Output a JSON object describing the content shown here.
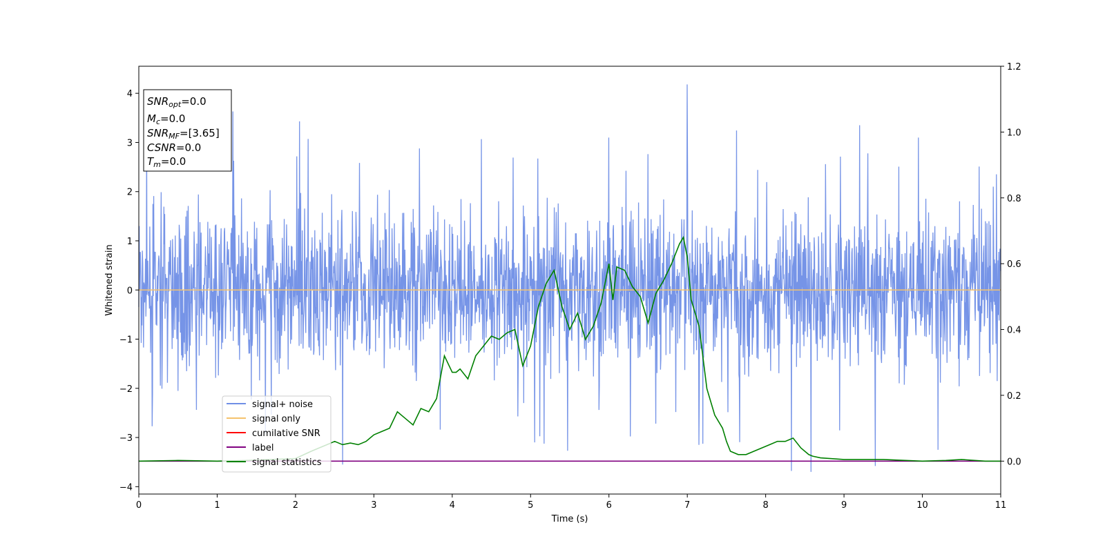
{
  "chart_data": {
    "type": "line",
    "title": "",
    "xlabel": "Time (s)",
    "ylabel": "Whitened strain",
    "ylabel_right": "",
    "xlim": [
      0,
      11
    ],
    "ylim": [
      -4.15,
      4.55
    ],
    "ylim_right": [
      -0.1,
      1.2
    ],
    "xticks": [
      "0",
      "1",
      "2",
      "3",
      "4",
      "5",
      "6",
      "7",
      "8",
      "9",
      "10",
      "11"
    ],
    "yticks": [
      "−4",
      "−3",
      "−2",
      "−1",
      "0",
      "1",
      "2",
      "3",
      "4"
    ],
    "yticks_right": [
      "0.0",
      "0.2",
      "0.4",
      "0.6",
      "0.8",
      "1.0",
      "1.2"
    ],
    "grid": false,
    "legend_position": "lower-left",
    "info_box": {
      "snr_opt": {
        "main": "SNR",
        "sub": "opt",
        "value": "=0.0"
      },
      "mc": {
        "main": "M",
        "sub": "c",
        "value": "=0.0"
      },
      "snr_mf": {
        "main": "SNR",
        "sub": "MF",
        "value": "=[3.65]"
      },
      "csnr": {
        "main": "CSNR",
        "sub": "",
        "value": "=0.0"
      },
      "tm": {
        "main": "T",
        "sub": "m",
        "value": "=0.0"
      }
    },
    "series": [
      {
        "name": "signal+ noise",
        "color": "#6f8ee6",
        "axis": "left",
        "kind": "noise",
        "sample_count": 2200,
        "typical_range": [
          -2.0,
          2.0
        ],
        "extremes": [
          {
            "x": 7.0,
            "y": 4.18
          },
          {
            "x": 8.58,
            "y": -3.7
          },
          {
            "x": 8.33,
            "y": -3.68
          },
          {
            "x": 2.6,
            "y": -3.55
          },
          {
            "x": 9.4,
            "y": -3.58
          },
          {
            "x": 1.2,
            "y": 3.63
          },
          {
            "x": 9.2,
            "y": 3.35
          },
          {
            "x": 6.0,
            "y": 3.1
          },
          {
            "x": 2.05,
            "y": 3.43
          },
          {
            "x": 10.2,
            "y": -3.25
          },
          {
            "x": 7.15,
            "y": -3.15
          },
          {
            "x": 5.05,
            "y": -3.1
          }
        ]
      },
      {
        "name": "signal only",
        "color": "#f5c26b",
        "axis": "left",
        "x": [
          0,
          11
        ],
        "y": [
          0,
          0
        ]
      },
      {
        "name": "cumilative SNR",
        "color": "#ff0000",
        "axis": "right",
        "x": [],
        "y": []
      },
      {
        "name": "label",
        "color": "#800080",
        "axis": "right",
        "x": [
          0,
          11
        ],
        "y": [
          0,
          0
        ]
      },
      {
        "name": "signal statistics",
        "color": "#008000",
        "axis": "right",
        "x": [
          0,
          0.5,
          1.0,
          1.5,
          2.0,
          2.2,
          2.4,
          2.5,
          2.6,
          2.7,
          2.8,
          2.9,
          3.0,
          3.1,
          3.2,
          3.3,
          3.4,
          3.5,
          3.6,
          3.7,
          3.8,
          3.9,
          4.0,
          4.05,
          4.1,
          4.2,
          4.3,
          4.4,
          4.5,
          4.6,
          4.7,
          4.8,
          4.9,
          5.0,
          5.1,
          5.2,
          5.3,
          5.4,
          5.5,
          5.6,
          5.7,
          5.8,
          5.9,
          6.0,
          6.05,
          6.1,
          6.2,
          6.3,
          6.4,
          6.5,
          6.6,
          6.7,
          6.8,
          6.9,
          6.95,
          7.0,
          7.05,
          7.15,
          7.25,
          7.35,
          7.45,
          7.5,
          7.55,
          7.65,
          7.75,
          7.85,
          7.95,
          8.05,
          8.15,
          8.25,
          8.35,
          8.45,
          8.55,
          8.6,
          8.7,
          9.0,
          9.5,
          10.0,
          10.3,
          10.5,
          10.8,
          11.0
        ],
        "y": [
          0.0,
          0.002,
          0.0,
          0.003,
          0.008,
          0.03,
          0.05,
          0.06,
          0.05,
          0.055,
          0.05,
          0.06,
          0.08,
          0.09,
          0.1,
          0.15,
          0.13,
          0.11,
          0.16,
          0.15,
          0.19,
          0.32,
          0.27,
          0.27,
          0.28,
          0.25,
          0.32,
          0.35,
          0.38,
          0.37,
          0.39,
          0.4,
          0.29,
          0.35,
          0.47,
          0.54,
          0.58,
          0.47,
          0.4,
          0.45,
          0.37,
          0.41,
          0.48,
          0.6,
          0.49,
          0.59,
          0.58,
          0.53,
          0.5,
          0.42,
          0.51,
          0.55,
          0.6,
          0.66,
          0.68,
          0.62,
          0.49,
          0.41,
          0.22,
          0.14,
          0.1,
          0.06,
          0.03,
          0.02,
          0.02,
          0.03,
          0.04,
          0.05,
          0.06,
          0.06,
          0.07,
          0.04,
          0.02,
          0.015,
          0.01,
          0.005,
          0.005,
          0.0,
          0.002,
          0.005,
          0.0,
          0.0
        ]
      }
    ]
  }
}
